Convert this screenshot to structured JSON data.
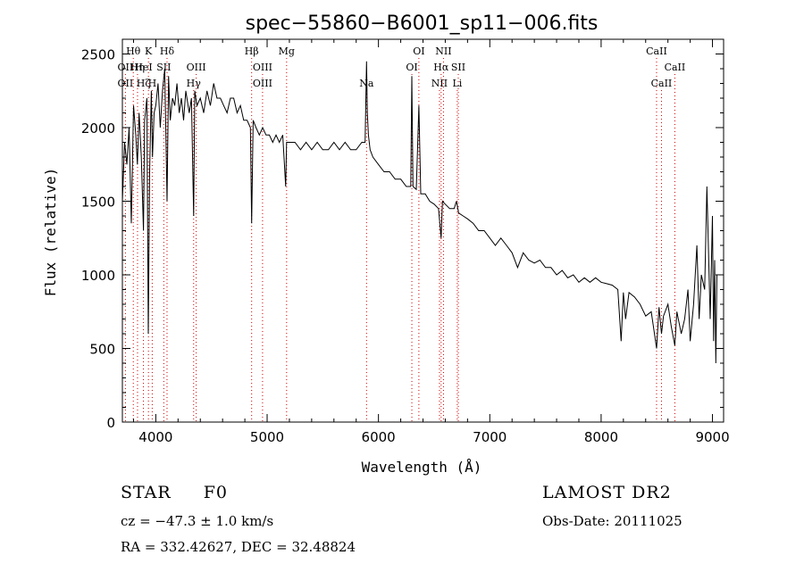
{
  "chart_data": {
    "type": "line",
    "title": "spec−55860−B6001_sp11−006.fits",
    "xlabel": "Wavelength (Å)",
    "ylabel": "Flux (relative)",
    "xlim": [
      3700,
      9100
    ],
    "ylim": [
      0,
      2600
    ],
    "x_ticks": [
      {
        "value": 4000,
        "label": "4000"
      },
      {
        "value": 5000,
        "label": "5000"
      },
      {
        "value": 6000,
        "label": "6000"
      },
      {
        "value": 7000,
        "label": "7000"
      },
      {
        "value": 8000,
        "label": "8000"
      },
      {
        "value": 9000,
        "label": "9000"
      }
    ],
    "y_ticks": [
      {
        "value": 0,
        "label": "0"
      },
      {
        "value": 500,
        "label": "500"
      },
      {
        "value": 1000,
        "label": "1000"
      },
      {
        "value": 1500,
        "label": "1500"
      },
      {
        "value": 2000,
        "label": "2000"
      },
      {
        "value": 2500,
        "label": "2500"
      }
    ],
    "grid": false,
    "series": [
      {
        "x": [
          3700,
          3720,
          3740,
          3760,
          3780,
          3800,
          3820,
          3835,
          3850,
          3870,
          3889,
          3900,
          3920,
          3933,
          3945,
          3960,
          3970,
          3985,
          4000,
          4020,
          4040,
          4060,
          4080,
          4101,
          4115,
          4130,
          4150,
          4170,
          4190,
          4210,
          4230,
          4250,
          4270,
          4300,
          4320,
          4340,
          4350,
          4370,
          4400,
          4430,
          4460,
          4490,
          4520,
          4550,
          4580,
          4610,
          4640,
          4670,
          4700,
          4730,
          4760,
          4790,
          4820,
          4850,
          4861,
          4875,
          4900,
          4930,
          4960,
          4990,
          5020,
          5050,
          5080,
          5110,
          5140,
          5167,
          5175,
          5200,
          5250,
          5300,
          5350,
          5400,
          5450,
          5500,
          5550,
          5600,
          5650,
          5700,
          5750,
          5800,
          5850,
          5880,
          5893,
          5900,
          5910,
          5925,
          5950,
          6000,
          6050,
          6100,
          6150,
          6200,
          6250,
          6290,
          6300,
          6310,
          6340,
          6363,
          6380,
          6420,
          6460,
          6500,
          6540,
          6563,
          6575,
          6600,
          6640,
          6680,
          6700,
          6720,
          6760,
          6800,
          6850,
          6900,
          6950,
          7000,
          7050,
          7100,
          7150,
          7200,
          7250,
          7300,
          7350,
          7400,
          7450,
          7500,
          7550,
          7600,
          7650,
          7700,
          7750,
          7800,
          7850,
          7900,
          7950,
          8000,
          8050,
          8100,
          8150,
          8180,
          8200,
          8220,
          8250,
          8300,
          8350,
          8400,
          8450,
          8498,
          8520,
          8542,
          8560,
          8600,
          8630,
          8662,
          8680,
          8720,
          8750,
          8780,
          8800,
          8830,
          8860,
          8880,
          8900,
          8930,
          8950,
          8980,
          9000,
          9010,
          9020,
          9030,
          9040
        ],
        "y": [
          1500,
          1900,
          1750,
          2000,
          1350,
          2150,
          1950,
          1750,
          2100,
          1800,
          1300,
          2050,
          2200,
          600,
          1700,
          2250,
          1800,
          2100,
          2150,
          2300,
          2000,
          2250,
          2400,
          1500,
          2350,
          2050,
          2200,
          2150,
          2300,
          2100,
          2200,
          2050,
          2250,
          2100,
          2200,
          1400,
          2250,
          2150,
          2200,
          2100,
          2250,
          2150,
          2300,
          2200,
          2200,
          2150,
          2100,
          2200,
          2200,
          2100,
          2150,
          2050,
          2050,
          2000,
          1350,
          2050,
          2000,
          1950,
          2000,
          1950,
          1950,
          1900,
          1950,
          1900,
          1950,
          1600,
          1900,
          1900,
          1900,
          1850,
          1900,
          1850,
          1900,
          1850,
          1850,
          1900,
          1850,
          1900,
          1850,
          1850,
          1900,
          1900,
          2450,
          2100,
          1950,
          1850,
          1800,
          1750,
          1700,
          1700,
          1650,
          1650,
          1600,
          1600,
          2350,
          1600,
          1580,
          2150,
          1550,
          1550,
          1500,
          1480,
          1450,
          1250,
          1500,
          1480,
          1450,
          1450,
          1500,
          1420,
          1400,
          1380,
          1350,
          1300,
          1300,
          1250,
          1200,
          1250,
          1200,
          1150,
          1050,
          1150,
          1100,
          1080,
          1100,
          1050,
          1050,
          1000,
          1030,
          980,
          1000,
          950,
          980,
          950,
          980,
          950,
          940,
          930,
          900,
          550,
          880,
          700,
          880,
          850,
          800,
          720,
          750,
          500,
          780,
          600,
          720,
          800,
          650,
          520,
          750,
          600,
          700,
          900,
          550,
          800,
          1200,
          700,
          1000,
          900,
          1600,
          700,
          1400,
          550,
          1100,
          400,
          1000
        ]
      }
    ],
    "line_markers": [
      {
        "label": "Hθ",
        "x": 3798,
        "row": 0
      },
      {
        "label": "OII",
        "x": 3727,
        "row": 1
      },
      {
        "label": "OII",
        "x": 3727,
        "row": 2
      },
      {
        "label": "Hη",
        "x": 3836,
        "row": 1
      },
      {
        "label": "Hζ",
        "x": 3889,
        "row": 2
      },
      {
        "label": "HeI",
        "x": 3889,
        "row": 1
      },
      {
        "label": "K",
        "x": 3934,
        "row": 0
      },
      {
        "label": "SII",
        "x": 4072,
        "row": 1
      },
      {
        "label": "H",
        "x": 3968,
        "row": 2
      },
      {
        "label": "Hδ",
        "x": 4101,
        "row": 0
      },
      {
        "label": "OIII",
        "x": 4363,
        "row": 1
      },
      {
        "label": "Hγ",
        "x": 4340,
        "row": 2
      },
      {
        "label": "Hβ",
        "x": 4861,
        "row": 0
      },
      {
        "label": "OIII",
        "x": 4959,
        "row": 1
      },
      {
        "label": "OIII",
        "x": 4959,
        "row": 2
      },
      {
        "label": "Mg",
        "x": 5175,
        "row": 0
      },
      {
        "label": "Na",
        "x": 5893,
        "row": 2
      },
      {
        "label": "OI",
        "x": 6300,
        "row": 1
      },
      {
        "label": "OI",
        "x": 6363,
        "row": 0
      },
      {
        "label": "NII",
        "x": 6584,
        "row": 0
      },
      {
        "label": "Hα",
        "x": 6563,
        "row": 1
      },
      {
        "label": "SII",
        "x": 6717,
        "row": 1
      },
      {
        "label": "NII",
        "x": 6548,
        "row": 2
      },
      {
        "label": "Li",
        "x": 6708,
        "row": 2
      },
      {
        "label": "CaII",
        "x": 8498,
        "row": 0
      },
      {
        "label": "CaII",
        "x": 8662,
        "row": 1
      },
      {
        "label": "CaII",
        "x": 8542,
        "row": 2
      }
    ]
  },
  "info": {
    "class_label": "STAR",
    "subclass": "F0",
    "survey": "LAMOST DR2",
    "cz_text": "cz = −47.3 ± 1.0 km/s",
    "obs_date": "Obs-Date: 20111025",
    "coords": "RA = 332.42627, DEC =  32.48824"
  },
  "colors": {
    "spectrum": "#000000",
    "line_markers": "#cc0000",
    "ca_markers": "#cc0000"
  }
}
